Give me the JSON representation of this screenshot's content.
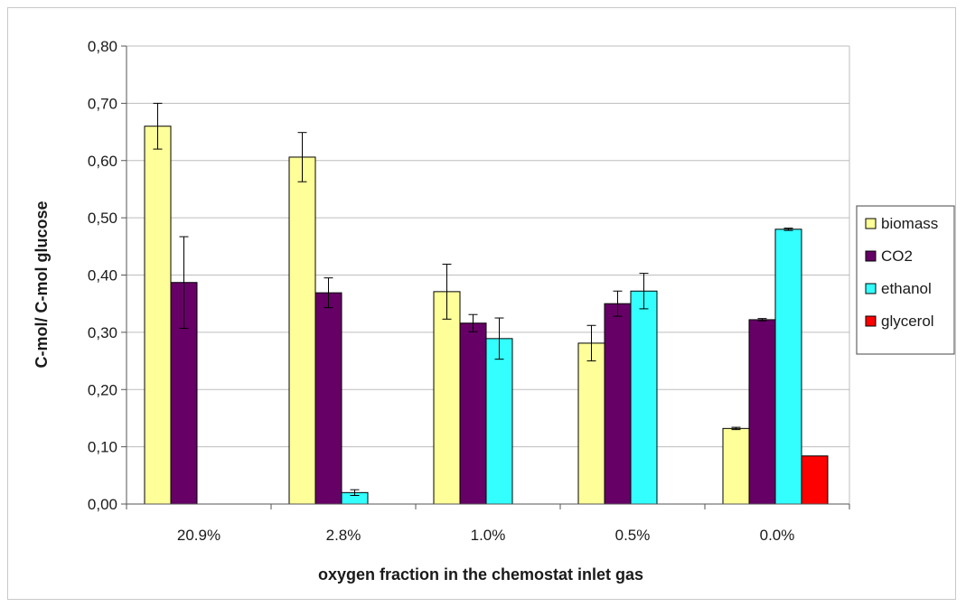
{
  "chart_data": {
    "type": "bar",
    "title": "",
    "xlabel": "oxygen fraction in the chemostat inlet gas",
    "ylabel": "C-mol/ C-mol glucose",
    "categories": [
      "20.9%",
      "2.8%",
      "1.0%",
      "0.5%",
      "0.0%"
    ],
    "ylim": [
      0,
      0.8
    ],
    "yticks": [
      "0,00",
      "0,10",
      "0,20",
      "0,30",
      "0,40",
      "0,50",
      "0,60",
      "0,70",
      "0,80"
    ],
    "ytick_values": [
      0,
      0.1,
      0.2,
      0.3,
      0.4,
      0.5,
      0.6,
      0.7,
      0.8
    ],
    "grid": true,
    "legend_position": "right",
    "series": [
      {
        "name": "biomass",
        "color": "#ffff99",
        "values": [
          0.66,
          0.606,
          0.371,
          0.281,
          0.132
        ],
        "errors": [
          0.04,
          0.043,
          0.048,
          0.031,
          0.002
        ]
      },
      {
        "name": "CO2",
        "color": "#660066",
        "values": [
          0.387,
          0.369,
          0.316,
          0.35,
          0.322
        ],
        "errors": [
          0.08,
          0.026,
          0.015,
          0.022,
          0.002
        ]
      },
      {
        "name": "ethanol",
        "color": "#33ffff",
        "values": [
          0.0,
          0.02,
          0.289,
          0.372,
          0.48
        ],
        "errors": [
          0.0,
          0.005,
          0.036,
          0.031,
          0.002
        ]
      },
      {
        "name": "glycerol",
        "color": "#ff0000",
        "values": [
          0.0,
          0.0,
          0.0,
          0.0,
          0.084
        ],
        "errors": [
          0.0,
          0.0,
          0.0,
          0.0,
          0.0
        ]
      }
    ]
  }
}
